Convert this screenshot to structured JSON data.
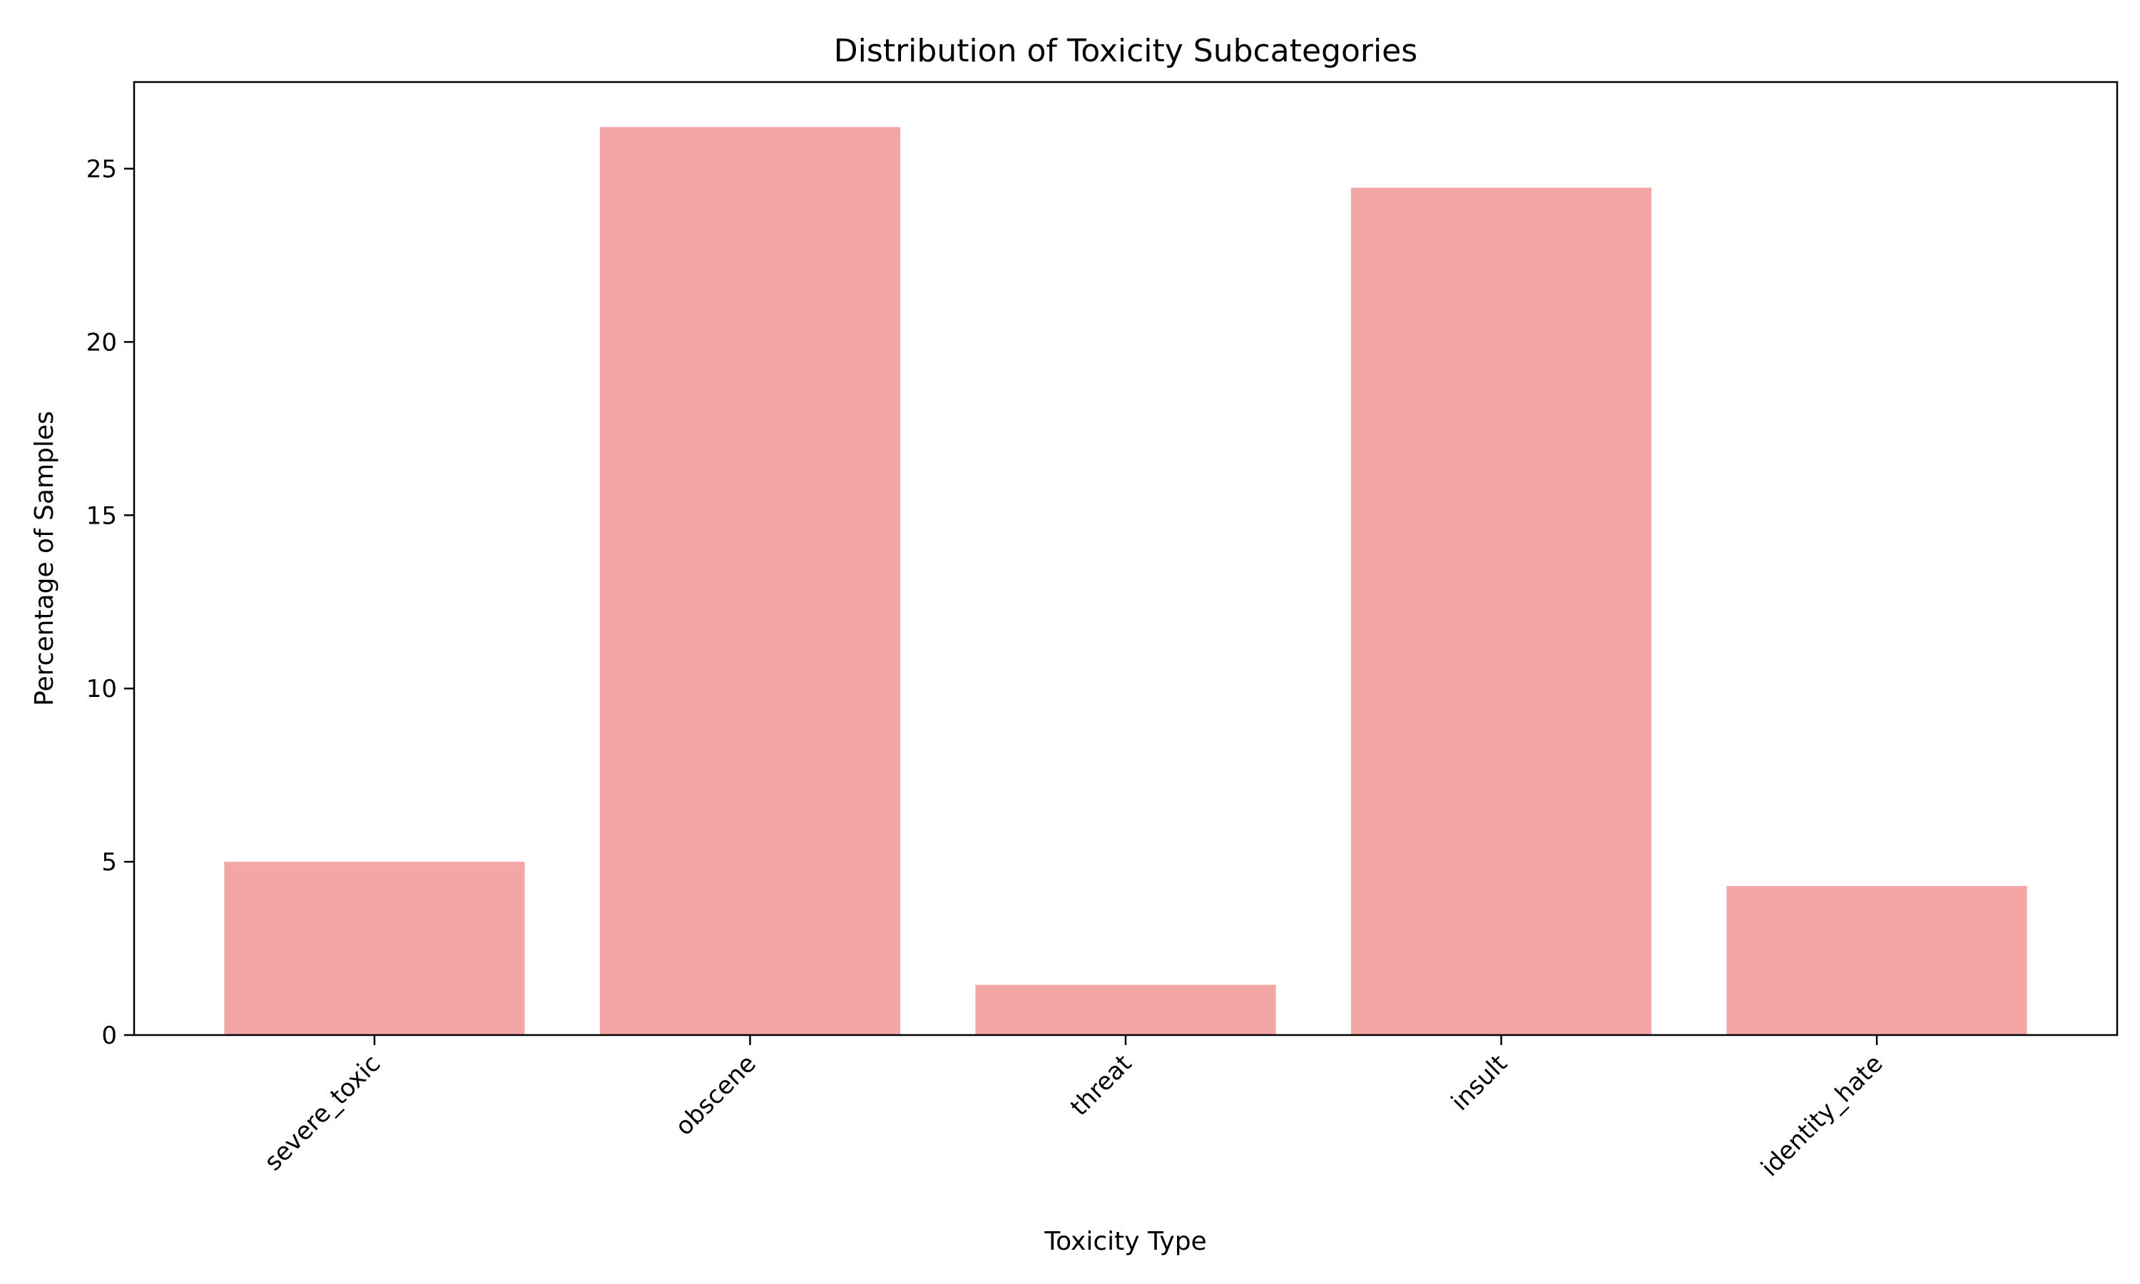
{
  "chart_data": {
    "type": "bar",
    "title": "Distribution of Toxicity Subcategories",
    "xlabel": "Toxicity Type",
    "ylabel": "Percentage of Samples",
    "categories": [
      "severe_toxic",
      "obscene",
      "threat",
      "insult",
      "identity_hate"
    ],
    "values": [
      5.0,
      26.2,
      1.45,
      24.45,
      4.3
    ],
    "ylim": [
      0,
      27.5
    ],
    "yticks": [
      0,
      5,
      10,
      15,
      20,
      25
    ],
    "bar_color": "#f4a6a6",
    "grid": false,
    "legend": "none"
  }
}
